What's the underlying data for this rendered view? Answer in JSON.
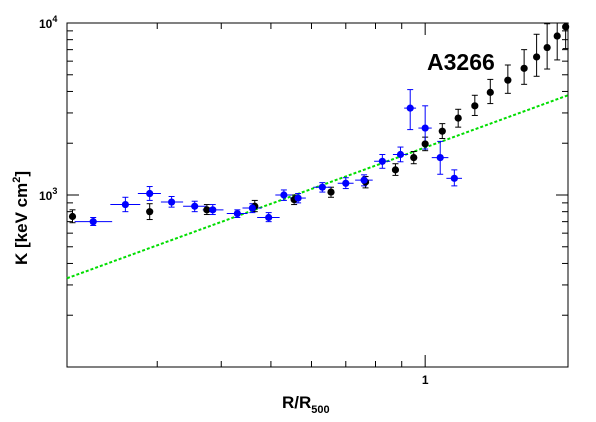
{
  "chart_data": {
    "type": "scatter",
    "title": "",
    "annotation": "A3266",
    "xlabel": {
      "main": "R/R",
      "sub": "500"
    },
    "ylabel": {
      "main": "K [keV cm",
      "sup": "2",
      "tail": "]"
    },
    "x_scale": "log",
    "y_scale": "log",
    "xlim": [
      0.2,
      1.9
    ],
    "ylim": [
      100,
      10000
    ],
    "x_tick_labels": [
      {
        "value": 1,
        "label": "1"
      }
    ],
    "y_tick_labels": [
      {
        "value": 1000,
        "base": "10",
        "exp": "3"
      },
      {
        "value": 10000,
        "base": "10",
        "exp": "4"
      }
    ],
    "grid": false,
    "series": [
      {
        "color": "#000000",
        "marker": "circle",
        "points": [
          {
            "x": 0.205,
            "y": 750,
            "ylo": 690,
            "yhi": 820
          },
          {
            "x": 0.29,
            "y": 800,
            "ylo": 720,
            "yhi": 890
          },
          {
            "x": 0.375,
            "y": 820,
            "ylo": 770,
            "yhi": 880
          },
          {
            "x": 0.465,
            "y": 860,
            "ylo": 800,
            "yhi": 930
          },
          {
            "x": 0.555,
            "y": 940,
            "ylo": 880,
            "yhi": 1000
          },
          {
            "x": 0.655,
            "y": 1040,
            "ylo": 970,
            "yhi": 1110
          },
          {
            "x": 0.765,
            "y": 1190,
            "ylo": 1100,
            "yhi": 1280
          },
          {
            "x": 0.875,
            "y": 1400,
            "ylo": 1300,
            "yhi": 1520
          },
          {
            "x": 0.95,
            "y": 1650,
            "ylo": 1520,
            "yhi": 1790
          },
          {
            "x": 1.0,
            "y": 1980,
            "ylo": 1810,
            "yhi": 2170
          },
          {
            "x": 1.08,
            "y": 2350,
            "ylo": 2130,
            "yhi": 2600
          },
          {
            "x": 1.16,
            "y": 2800,
            "ylo": 2480,
            "yhi": 3150
          },
          {
            "x": 1.25,
            "y": 3300,
            "ylo": 2900,
            "yhi": 3800
          },
          {
            "x": 1.34,
            "y": 3950,
            "ylo": 3400,
            "yhi": 4700
          },
          {
            "x": 1.45,
            "y": 4650,
            "ylo": 3900,
            "yhi": 5700
          },
          {
            "x": 1.56,
            "y": 5450,
            "ylo": 4400,
            "yhi": 7000
          },
          {
            "x": 1.65,
            "y": 6350,
            "ylo": 4900,
            "yhi": 8600
          },
          {
            "x": 1.73,
            "y": 7200,
            "ylo": 5400,
            "yhi": 9900
          },
          {
            "x": 1.81,
            "y": 8400,
            "ylo": 6100,
            "yhi": 10000
          },
          {
            "x": 1.88,
            "y": 9500,
            "ylo": 7100,
            "yhi": 10000
          }
        ]
      },
      {
        "color": "#0000ff",
        "marker": "circle",
        "points": [
          {
            "x": 0.225,
            "y": 700,
            "xlo": 0.207,
            "xhi": 0.245,
            "ylo": 665,
            "yhi": 740
          },
          {
            "x": 0.26,
            "y": 880,
            "xlo": 0.243,
            "xhi": 0.278,
            "ylo": 800,
            "yhi": 970
          },
          {
            "x": 0.29,
            "y": 1020,
            "xlo": 0.275,
            "xhi": 0.305,
            "ylo": 930,
            "yhi": 1120
          },
          {
            "x": 0.32,
            "y": 910,
            "xlo": 0.305,
            "xhi": 0.337,
            "ylo": 850,
            "yhi": 980
          },
          {
            "x": 0.355,
            "y": 860,
            "xlo": 0.337,
            "xhi": 0.374,
            "ylo": 800,
            "yhi": 920
          },
          {
            "x": 0.385,
            "y": 820,
            "xlo": 0.368,
            "xhi": 0.404,
            "ylo": 770,
            "yhi": 880
          },
          {
            "x": 0.43,
            "y": 780,
            "xlo": 0.41,
            "xhi": 0.45,
            "ylo": 740,
            "yhi": 820
          },
          {
            "x": 0.46,
            "y": 840,
            "xlo": 0.44,
            "xhi": 0.48,
            "ylo": 790,
            "yhi": 890
          },
          {
            "x": 0.495,
            "y": 740,
            "xlo": 0.47,
            "xhi": 0.52,
            "ylo": 700,
            "yhi": 790
          },
          {
            "x": 0.53,
            "y": 1000,
            "xlo": 0.51,
            "xhi": 0.55,
            "ylo": 930,
            "yhi": 1070
          },
          {
            "x": 0.565,
            "y": 960,
            "xlo": 0.545,
            "xhi": 0.585,
            "ylo": 900,
            "yhi": 1020
          },
          {
            "x": 0.63,
            "y": 1110,
            "xlo": 0.605,
            "xhi": 0.655,
            "ylo": 1040,
            "yhi": 1180
          },
          {
            "x": 0.7,
            "y": 1170,
            "xlo": 0.675,
            "xhi": 0.725,
            "ylo": 1090,
            "yhi": 1260
          },
          {
            "x": 0.76,
            "y": 1220,
            "xlo": 0.73,
            "xhi": 0.79,
            "ylo": 1130,
            "yhi": 1310
          },
          {
            "x": 0.825,
            "y": 1570,
            "xlo": 0.795,
            "xhi": 0.855,
            "ylo": 1430,
            "yhi": 1720
          },
          {
            "x": 0.895,
            "y": 1720,
            "xlo": 0.865,
            "xhi": 0.925,
            "ylo": 1560,
            "yhi": 1900
          },
          {
            "x": 0.935,
            "y": 3200,
            "xlo": 0.91,
            "xhi": 0.96,
            "ylo": 2400,
            "yhi": 4100
          },
          {
            "x": 1.0,
            "y": 2450,
            "xlo": 0.97,
            "xhi": 1.03,
            "ylo": 1850,
            "yhi": 3300
          },
          {
            "x": 1.07,
            "y": 1650,
            "xlo": 1.03,
            "xhi": 1.11,
            "ylo": 1320,
            "yhi": 2050
          },
          {
            "x": 1.14,
            "y": 1250,
            "xlo": 1.1,
            "xhi": 1.18,
            "ylo": 1130,
            "yhi": 1400
          }
        ]
      }
    ],
    "reference_line": {
      "color": "#00dd00",
      "style": "dashed",
      "points": [
        {
          "x": 0.2,
          "y": 328
        },
        {
          "x": 1.9,
          "y": 3800
        }
      ]
    }
  }
}
